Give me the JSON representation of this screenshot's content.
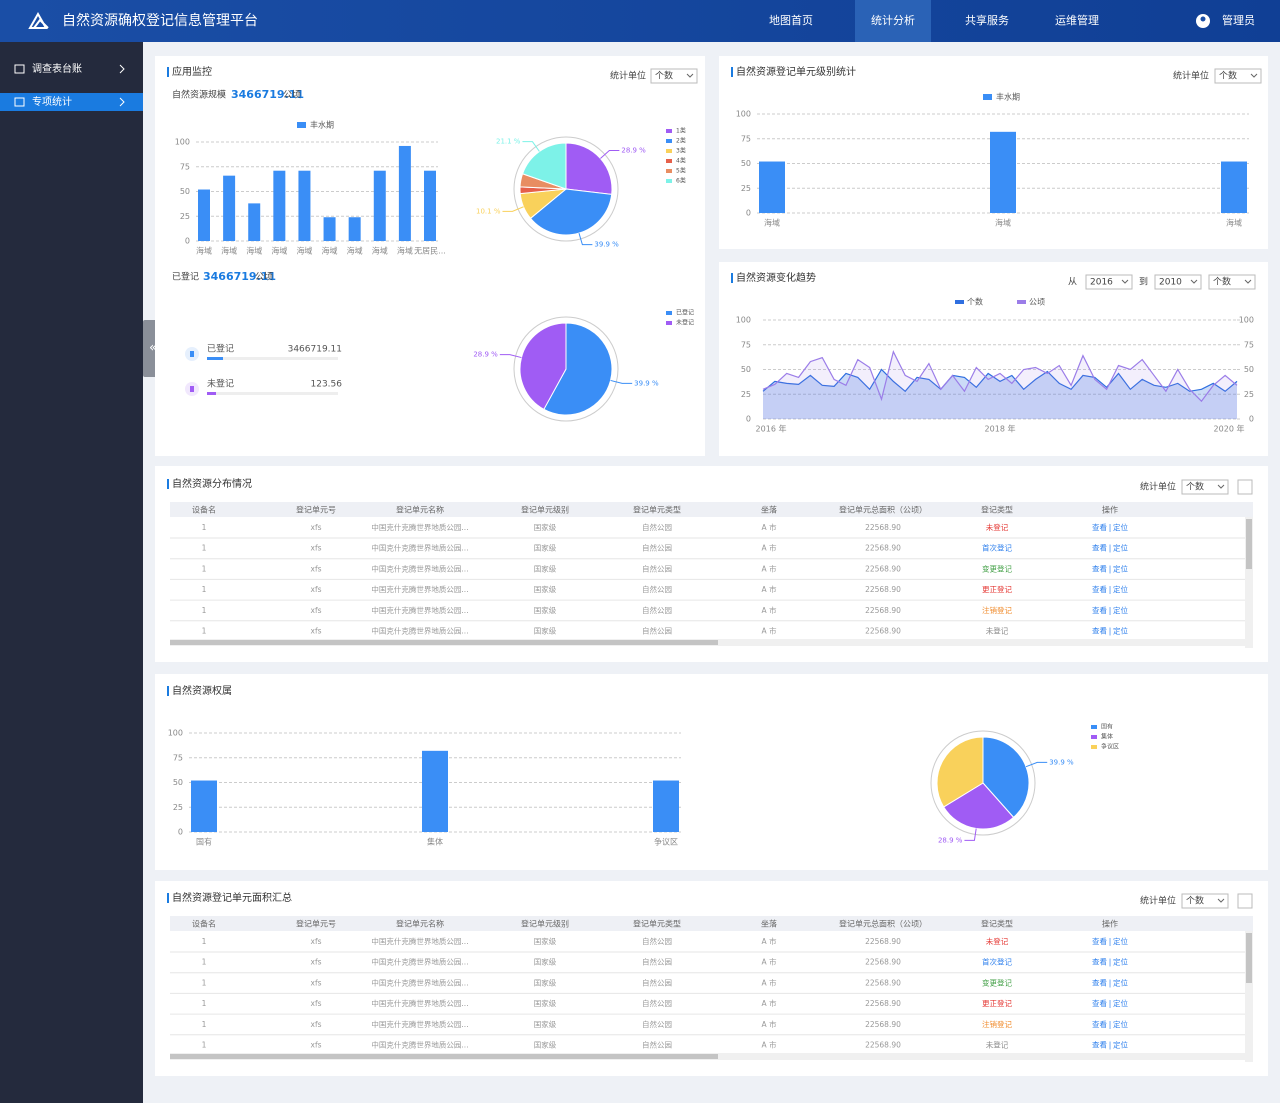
{
  "header": {
    "title": "自然资源确权登记信息管理平台",
    "nav": [
      "地图首页",
      "统计分析",
      "共享服务",
      "运维管理"
    ],
    "active_nav": 1,
    "user": "管理员"
  },
  "sidebar": {
    "items": [
      "调查表台账",
      "专项统计"
    ],
    "active": 1
  },
  "monitor": {
    "title": "应用监控",
    "unit_label": "统计单位",
    "unit": "个数",
    "scale_label": "自然资源规模",
    "scale_value": "3466719.11",
    "scale_unit": "公顷",
    "bar": {
      "type": "bar",
      "legend": "丰水期",
      "color": "#3a8ef6",
      "categories": [
        "海域",
        "海域",
        "海域",
        "海域",
        "海域",
        "海域",
        "海域",
        "海域",
        "海域",
        "无居民..."
      ],
      "values": [
        52,
        66,
        38,
        71,
        71,
        24,
        24,
        71,
        96,
        71
      ],
      "ylim": [
        0,
        100
      ],
      "yticks": [
        0,
        25,
        50,
        75,
        100
      ],
      "grid": true
    },
    "pie": {
      "type": "pie",
      "categories": [
        "1类",
        "2类",
        "3类",
        "4类",
        "5类",
        "6类"
      ],
      "colors": [
        "#a05cf4",
        "#3a8ef6",
        "#f9d15b",
        "#e6604a",
        "#e88d62",
        "#7df2e8"
      ],
      "values": [
        28.9,
        39.9,
        10.1,
        2.5,
        5,
        21.1
      ],
      "value_labels": [
        "28.9 %",
        "39.9 %",
        "10.1 %",
        null,
        null,
        "21.1 %"
      ]
    },
    "registered_label": "已登记",
    "registered_value": "3466719.11",
    "registered_unit": "公顷",
    "status": [
      {
        "name": "已登记",
        "value": "3466719.11",
        "color": "#3a8ef6"
      },
      {
        "name": "未登记",
        "value": "123.56",
        "color": "#a05cf4"
      }
    ],
    "pie2": {
      "type": "pie",
      "categories": [
        "已登记",
        "未登记"
      ],
      "colors": [
        "#3a8ef6",
        "#a05cf4"
      ],
      "values": [
        39.9,
        28.9
      ],
      "value_labels": [
        "39.9 %",
        "28.9 %"
      ]
    }
  },
  "level": {
    "title": "自然资源登记单元级别统计",
    "unit_label": "统计单位",
    "unit": "个数",
    "bar": {
      "type": "bar",
      "legend": "丰水期",
      "color": "#3a8ef6",
      "categories": [
        "海域",
        "海域",
        "海域"
      ],
      "values": [
        52,
        82,
        52
      ],
      "ylim": [
        0,
        100
      ],
      "yticks": [
        0,
        25,
        50,
        75,
        100
      ],
      "grid": true
    }
  },
  "trend": {
    "title": "自然资源变化趋势",
    "from_label": "从",
    "from": "2016",
    "to_label": "到",
    "to": "2010",
    "unit": "个数",
    "chart": {
      "type": "line",
      "xticks": [
        "2016 年",
        "2018 年",
        "2020 年"
      ],
      "ylim": [
        0,
        100
      ],
      "yticks": [
        0,
        25,
        50,
        75,
        100
      ],
      "y2lim": [
        0,
        100
      ],
      "y2ticks": [
        0,
        25,
        50,
        75,
        100
      ],
      "grid": true,
      "series": [
        {
          "name": "个数",
          "color": "#2f6fe0",
          "values": [
            28,
            38,
            36,
            35,
            44,
            34,
            33,
            46,
            42,
            30,
            50,
            38,
            28,
            42,
            40,
            30,
            44,
            42,
            32,
            46,
            38,
            44,
            30,
            40,
            48,
            36,
            30,
            44,
            42,
            32,
            46,
            30,
            40,
            34,
            32,
            36,
            28,
            30,
            36,
            28,
            38
          ]
        },
        {
          "name": "公顷",
          "color": "#9b7de8",
          "axis": "y2",
          "values": [
            30,
            35,
            46,
            42,
            58,
            62,
            40,
            34,
            60,
            52,
            20,
            68,
            44,
            38,
            56,
            30,
            44,
            28,
            52,
            40,
            46,
            36,
            50,
            52,
            46,
            54,
            34,
            64,
            40,
            30,
            54,
            50,
            60,
            44,
            28,
            50,
            30,
            18,
            34,
            44,
            34
          ]
        }
      ]
    }
  },
  "distribution": {
    "title": "自然资源分布情况",
    "unit_label": "统计单位",
    "unit": "个数",
    "columns": [
      "设备名",
      "登记单元号",
      "登记单元名称",
      "登记单元级别",
      "登记单元类型",
      "坐落",
      "登记单元总面积（公顷）",
      "登记类型",
      "操作"
    ],
    "rows": [
      [
        "1",
        "xfs",
        "中国克什克腾世界地质公园...",
        "国家级",
        "自然公园",
        "A 市",
        "22568.90",
        "未登记"
      ],
      [
        "1",
        "xfs",
        "中国克什克腾世界地质公园...",
        "国家级",
        "自然公园",
        "A 市",
        "22568.90",
        "首次登记"
      ],
      [
        "1",
        "xfs",
        "中国克什克腾世界地质公园...",
        "国家级",
        "自然公园",
        "A 市",
        "22568.90",
        "变更登记"
      ],
      [
        "1",
        "xfs",
        "中国克什克腾世界地质公园...",
        "国家级",
        "自然公园",
        "A 市",
        "22568.90",
        "更正登记"
      ],
      [
        "1",
        "xfs",
        "中国克什克腾世界地质公园...",
        "国家级",
        "自然公园",
        "A 市",
        "22568.90",
        "注销登记"
      ],
      [
        "1",
        "xfs",
        "中国克什克腾世界地质公园...",
        "国家级",
        "自然公园",
        "A 市",
        "22568.90",
        "未登记"
      ]
    ],
    "type_colors": [
      "#e53935",
      "#2f80ed",
      "#43a047",
      "#e53935",
      "#f08c2e",
      "#888888"
    ],
    "actions": [
      "查看",
      "定位"
    ]
  },
  "ownership": {
    "title": "自然资源权属",
    "bar": {
      "type": "bar",
      "color": "#3a8ef6",
      "categories": [
        "国有",
        "集体",
        "争议区"
      ],
      "values": [
        52,
        82,
        52
      ],
      "ylim": [
        0,
        100
      ],
      "yticks": [
        0,
        25,
        50,
        75,
        100
      ],
      "grid": true
    },
    "pie": {
      "type": "pie",
      "categories": [
        "国有",
        "集体",
        "争议区"
      ],
      "colors": [
        "#3a8ef6",
        "#a05cf4",
        "#f9d15b"
      ],
      "values": [
        39.9,
        28.9,
        35
      ],
      "value_labels": [
        "39.9 %",
        "28.9 %",
        null
      ]
    }
  },
  "area": {
    "title": "自然资源登记单元面积汇总",
    "unit_label": "统计单位",
    "unit": "个数",
    "columns": [
      "设备名",
      "登记单元号",
      "登记单元名称",
      "登记单元级别",
      "登记单元类型",
      "坐落",
      "登记单元总面积（公顷）",
      "登记类型",
      "操作"
    ],
    "rows": [
      [
        "1",
        "xfs",
        "中国克什克腾世界地质公园...",
        "国家级",
        "自然公园",
        "A 市",
        "22568.90",
        "未登记"
      ],
      [
        "1",
        "xfs",
        "中国克什克腾世界地质公园...",
        "国家级",
        "自然公园",
        "A 市",
        "22568.90",
        "首次登记"
      ],
      [
        "1",
        "xfs",
        "中国克什克腾世界地质公园...",
        "国家级",
        "自然公园",
        "A 市",
        "22568.90",
        "变更登记"
      ],
      [
        "1",
        "xfs",
        "中国克什克腾世界地质公园...",
        "国家级",
        "自然公园",
        "A 市",
        "22568.90",
        "更正登记"
      ],
      [
        "1",
        "xfs",
        "中国克什克腾世界地质公园...",
        "国家级",
        "自然公园",
        "A 市",
        "22568.90",
        "注销登记"
      ],
      [
        "1",
        "xfs",
        "中国克什克腾世界地质公园...",
        "国家级",
        "自然公园",
        "A 市",
        "22568.90",
        "未登记"
      ]
    ],
    "type_colors": [
      "#e53935",
      "#2f80ed",
      "#43a047",
      "#e53935",
      "#f08c2e",
      "#888888"
    ],
    "actions": [
      "查看",
      "定位"
    ]
  }
}
